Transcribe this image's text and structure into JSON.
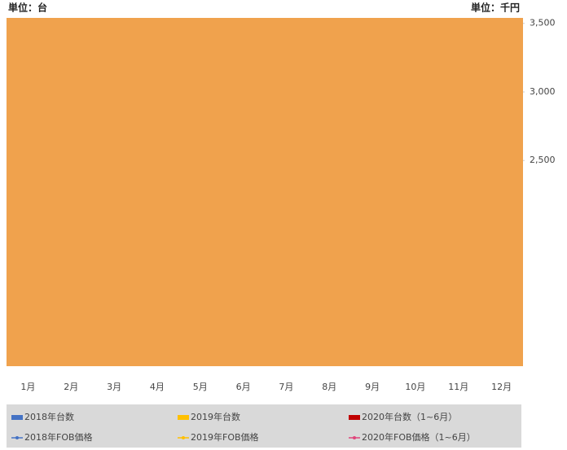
{
  "chart_data": {
    "type": "area",
    "left_unit": "単位：台",
    "right_unit": "単位：千円",
    "categories": [
      "1月",
      "2月",
      "3月",
      "4月",
      "5月",
      "6月",
      "7月",
      "8月",
      "9月",
      "10月",
      "11月",
      "12月"
    ],
    "fill_color": "#f0a24d",
    "y2lim": [
      1000,
      3540
    ],
    "y2ticks": [
      {
        "value": 2500,
        "label": "2,500"
      },
      {
        "value": 3000,
        "label": "3,000"
      },
      {
        "value": 3500,
        "label": "3,500"
      }
    ],
    "legend": [
      {
        "name": "2018年台数",
        "color": "#4472c4",
        "kind": "bar"
      },
      {
        "name": "2019年台数",
        "color": "#ffc000",
        "kind": "bar"
      },
      {
        "name": "2020年台数（1~6月）",
        "color": "#c00000",
        "kind": "bar"
      },
      {
        "name": "2018年FOB価格",
        "color": "#4472c4",
        "kind": "line"
      },
      {
        "name": "2019年FOB価格",
        "color": "#ffc000",
        "kind": "line"
      },
      {
        "name": "2020年FOB価格（1~6月）",
        "color": "#e0457b",
        "kind": "line"
      }
    ]
  }
}
